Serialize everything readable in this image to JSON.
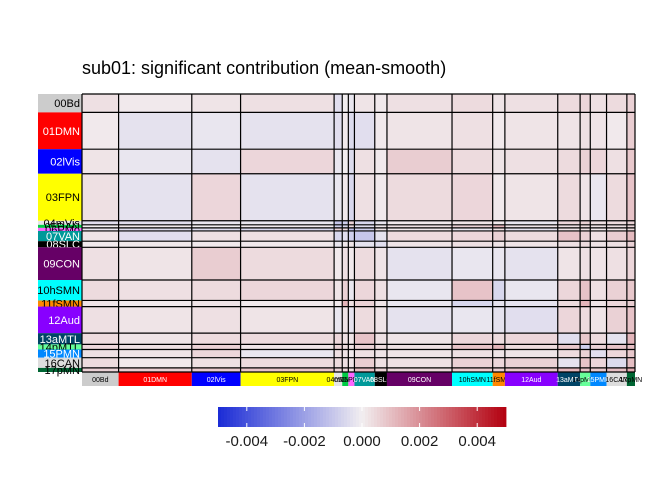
{
  "chart_data": {
    "type": "heatmap",
    "title": "sub01: significant contribution (mean-smooth)",
    "networks": [
      {
        "name": "00Bd",
        "size": 18,
        "color": "#cccccc",
        "text": "#000000"
      },
      {
        "name": "01DMN",
        "size": 36,
        "color": "#ff0000",
        "text": "#ffffff"
      },
      {
        "name": "02lVis",
        "size": 24,
        "color": "#0000ff",
        "text": "#ffffff"
      },
      {
        "name": "03FPN",
        "size": 46,
        "color": "#ffff00",
        "text": "#000000"
      },
      {
        "name": "04mVis",
        "size": 4,
        "color": "#e6e6e6",
        "text": "#000000"
      },
      {
        "name": "05DAN",
        "size": 3,
        "color": "#00cc44",
        "text": "#000000"
      },
      {
        "name": "06PMo",
        "size": 3,
        "color": "#ff66ff",
        "text": "#000000"
      },
      {
        "name": "07VAN",
        "size": 10,
        "color": "#009999",
        "text": "#ffffff"
      },
      {
        "name": "08SLC",
        "size": 6,
        "color": "#000000",
        "text": "#ffffff"
      },
      {
        "name": "09CON",
        "size": 32,
        "color": "#660066",
        "text": "#ffffff"
      },
      {
        "name": "10hSMN",
        "size": 20,
        "color": "#00ffff",
        "text": "#000000"
      },
      {
        "name": "11fSMN",
        "size": 6,
        "color": "#ff8800",
        "text": "#000000"
      },
      {
        "name": "12Aud",
        "size": 26,
        "color": "#8800ff",
        "text": "#ffffff"
      },
      {
        "name": "13aMTL",
        "size": 11,
        "color": "#004466",
        "text": "#ffffff"
      },
      {
        "name": "14pMTL",
        "size": 5,
        "color": "#66ff99",
        "text": "#000000"
      },
      {
        "name": "15PMN",
        "size": 8,
        "color": "#0088ff",
        "text": "#ffffff"
      },
      {
        "name": "16CAN",
        "size": 10,
        "color": "#dddddd",
        "text": "#000000"
      },
      {
        "name": "17pMN",
        "size": 4,
        "color": "#006633",
        "text": "#000000"
      }
    ],
    "values": [
      [
        0.0003,
        0.0001,
        0.0002,
        0.0003,
        -0.0004,
        0.0,
        -0.0002,
        0.0002,
        0.0001,
        0.0003,
        0.0004,
        0.0002,
        0.0003,
        0.0004,
        0.0005,
        0.0003,
        0.0004,
        0.0006
      ],
      [
        0.0001,
        -0.0003,
        -0.0002,
        -0.0003,
        -0.0004,
        0.0001,
        -0.0005,
        -0.0004,
        0.0001,
        0.0002,
        0.0003,
        0.0001,
        0.0002,
        0.0002,
        0.0003,
        0.0002,
        0.0001,
        0.0007
      ],
      [
        0.0002,
        -0.0002,
        -0.0003,
        0.0005,
        -0.0002,
        0.0,
        -0.0005,
        0.0003,
        0.0001,
        0.0007,
        0.0004,
        0.0002,
        0.0003,
        0.0004,
        0.0006,
        0.0005,
        0.0003,
        0.0008
      ],
      [
        0.0003,
        -0.0003,
        0.0005,
        -0.0003,
        -0.0002,
        0.0001,
        -0.0006,
        0.0003,
        0.0001,
        0.0004,
        0.0005,
        0.0001,
        0.0002,
        0.0004,
        0.0002,
        -0.0002,
        0.0004,
        0.0009
      ],
      [
        -0.0004,
        -0.0004,
        -0.0002,
        -0.0002,
        -0.001,
        -0.0008,
        0.0006,
        -0.0006,
        -0.0002,
        0.0001,
        0.0002,
        0.0001,
        -0.0002,
        0.0005,
        0.0006,
        0.0003,
        0.0004,
        0.0006
      ],
      [
        0.0,
        0.0001,
        0.0,
        0.0001,
        -0.0008,
        -0.0006,
        0.0004,
        -0.0004,
        0.0001,
        0.0003,
        0.0006,
        0.0012,
        0.0002,
        0.0003,
        0.0004,
        0.0002,
        0.0003,
        0.0005
      ],
      [
        -0.0002,
        -0.0005,
        -0.0005,
        -0.0006,
        0.0006,
        0.0004,
        -0.0012,
        -0.0008,
        0.0002,
        0.0001,
        -0.0002,
        0.0003,
        -0.0003,
        0.0002,
        0.0003,
        0.0001,
        0.0002,
        0.0004
      ],
      [
        0.0002,
        -0.0004,
        0.0003,
        0.0003,
        -0.0006,
        -0.0004,
        -0.0008,
        -0.001,
        -0.0003,
        0.0004,
        0.0005,
        0.0006,
        0.0004,
        0.0009,
        0.0006,
        0.0003,
        0.0007,
        0.0011
      ],
      [
        0.0001,
        0.0001,
        0.0001,
        0.0001,
        -0.0002,
        0.0001,
        0.0002,
        -0.0003,
        -0.0004,
        0.0002,
        0.0003,
        0.0002,
        0.0002,
        0.0003,
        0.0004,
        0.0002,
        0.0003,
        0.0006
      ],
      [
        0.0003,
        0.0002,
        0.0007,
        0.0004,
        0.0001,
        0.0003,
        0.0001,
        0.0004,
        0.0002,
        -0.0003,
        -0.0002,
        -0.0002,
        -0.0003,
        0.0002,
        0.0003,
        0.0002,
        0.0003,
        0.0005
      ],
      [
        0.0004,
        0.0003,
        0.0004,
        0.0005,
        0.0002,
        0.0006,
        -0.0002,
        0.0005,
        0.0003,
        -0.0002,
        0.0009,
        -0.0006,
        -0.0002,
        0.0005,
        0.0009,
        0.0003,
        0.0006,
        0.0008
      ],
      [
        0.0002,
        0.0001,
        0.0002,
        0.0001,
        0.0001,
        0.0012,
        0.0003,
        0.0006,
        0.0002,
        -0.0002,
        -0.0006,
        -0.0003,
        -0.0003,
        0.0004,
        0.0012,
        0.0002,
        0.0005,
        0.0007
      ],
      [
        0.0003,
        0.0002,
        0.0003,
        0.0002,
        -0.0002,
        0.0002,
        -0.0003,
        0.0004,
        0.0002,
        -0.0003,
        -0.0002,
        -0.0003,
        -0.0004,
        0.0005,
        0.0004,
        0.0002,
        0.0006,
        0.0009
      ],
      [
        0.0004,
        0.0002,
        0.0004,
        0.0004,
        0.0005,
        0.0003,
        0.0002,
        0.0009,
        0.0003,
        0.0002,
        0.0005,
        0.0004,
        0.0005,
        -0.0004,
        0.0008,
        0.0004,
        -0.0003,
        0.0012
      ],
      [
        0.0005,
        0.0003,
        0.0006,
        0.0002,
        0.0006,
        0.0004,
        0.0003,
        0.0006,
        0.0004,
        0.0003,
        0.0009,
        0.0012,
        0.0004,
        0.0008,
        -0.0008,
        0.0006,
        0.0009,
        0.001
      ],
      [
        0.0003,
        0.0002,
        0.0005,
        -0.0002,
        0.0003,
        0.0002,
        0.0001,
        0.0003,
        0.0002,
        0.0002,
        0.0003,
        0.0002,
        0.0002,
        0.0004,
        0.0006,
        -0.0004,
        0.0005,
        0.0008
      ],
      [
        0.0004,
        0.0001,
        0.0003,
        0.0004,
        0.0004,
        0.0003,
        0.0002,
        0.0007,
        0.0003,
        0.0003,
        0.0006,
        0.0005,
        0.0006,
        -0.0003,
        0.0009,
        0.0005,
        -0.0005,
        0.001
      ],
      [
        0.0006,
        0.0007,
        0.0008,
        0.0009,
        0.0006,
        0.0005,
        0.0004,
        0.0011,
        0.0006,
        0.0005,
        0.0008,
        0.0007,
        0.0009,
        0.0012,
        0.001,
        0.0008,
        0.001,
        0.0014
      ]
    ],
    "colorbar": {
      "range": [
        -0.005,
        0.005
      ],
      "ticks": [
        -0.004,
        -0.002,
        0.0,
        0.002,
        0.004
      ],
      "tick_labels": [
        "-0.004",
        "-0.002",
        "0.000",
        "0.002",
        "0.004"
      ],
      "colors": {
        "low": "#1a2bd6",
        "mid": "#f2eef0",
        "high": "#b3000f"
      },
      "placement": "bottom"
    },
    "grid": true,
    "legend": "none"
  }
}
